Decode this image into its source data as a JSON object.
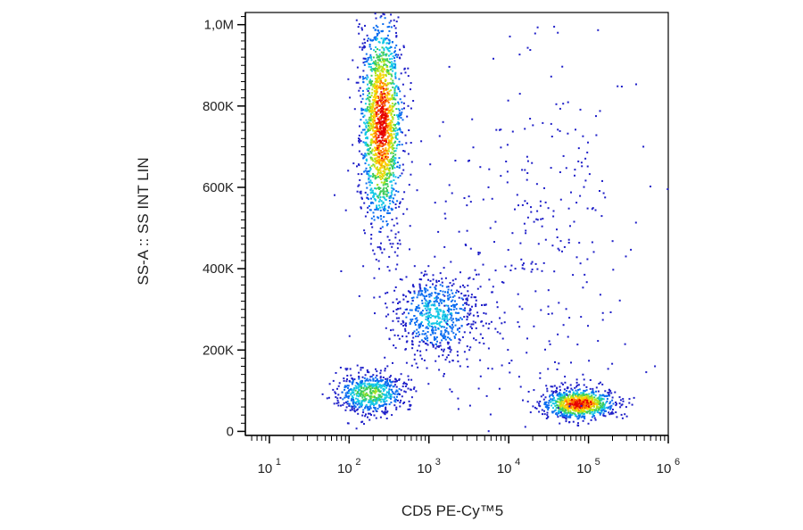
{
  "chart_data": {
    "type": "scatter",
    "subtype": "flow-cytometry-density-dot-plot",
    "xlabel": "CD5  PE-Cy™5",
    "ylabel": "SS-A :: SS INT LIN",
    "x_scale": "log",
    "xlim": [
      5,
      1000000
    ],
    "ylim": [
      -10000,
      1030000
    ],
    "x_ticks": [
      {
        "value": 10,
        "base": "10",
        "exp": "1"
      },
      {
        "value": 100,
        "base": "10",
        "exp": "2"
      },
      {
        "value": 1000,
        "base": "10",
        "exp": "3"
      },
      {
        "value": 10000,
        "base": "10",
        "exp": "4"
      },
      {
        "value": 100000,
        "base": "10",
        "exp": "5"
      },
      {
        "value": 1000000,
        "base": "10",
        "exp": "6"
      }
    ],
    "y_ticks": [
      {
        "value": 0,
        "label": "0"
      },
      {
        "value": 200000,
        "label": "200K"
      },
      {
        "value": 400000,
        "label": "400K"
      },
      {
        "value": 600000,
        "label": "600K"
      },
      {
        "value": 800000,
        "label": "800K"
      },
      {
        "value": 1000000,
        "label": "1,0M"
      }
    ],
    "density_colors": [
      "#1f1fc8",
      "#0a6cf0",
      "#14c8e6",
      "#3ccc5a",
      "#b4e61e",
      "#ffd200",
      "#ff7800",
      "#e60000"
    ],
    "populations": [
      {
        "x_center": 250,
        "y_center": 760000,
        "x_spread_decades": 0.13,
        "y_spread": 130000,
        "count": 1700,
        "peak_density": 1.0
      },
      {
        "x_center": 1200,
        "y_center": 290000,
        "x_spread_decades": 0.28,
        "y_spread": 55000,
        "count": 650,
        "peak_density": 0.3
      },
      {
        "x_center": 180,
        "y_center": 95000,
        "x_spread_decades": 0.22,
        "y_spread": 25000,
        "count": 600,
        "peak_density": 0.5
      },
      {
        "x_center": 75000,
        "y_center": 70000,
        "x_spread_decades": 0.22,
        "y_spread": 18000,
        "count": 900,
        "peak_density": 1.0
      },
      {
        "x_center": 20000,
        "y_center": 450000,
        "x_spread_decades": 0.7,
        "y_spread": 280000,
        "count": 350,
        "peak_density": 0.05
      }
    ],
    "grid": false,
    "legend": "none"
  }
}
